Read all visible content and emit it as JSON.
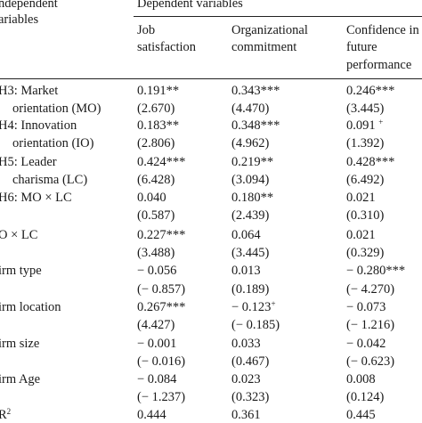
{
  "header": {
    "independent_line1": "ndependent",
    "independent_line2": "ariables",
    "dependent": "Dependent variables",
    "col1_line1": "Job",
    "col1_line2": "satisfaction",
    "col2_line1": "Organizational",
    "col2_line2": "commitment",
    "col3_line1": "Confidence in",
    "col3_line2": "future",
    "col3_line3": "performance"
  },
  "rows": [
    {
      "label": [
        "H3: Market",
        "orientation (MO)"
      ],
      "c1": [
        "0.191**",
        "(2.670)"
      ],
      "c2": [
        "0.343***",
        "(4.470)"
      ],
      "c3": [
        "0.246***",
        "(3.445)"
      ]
    },
    {
      "label": [
        "H4: Innovation",
        "orientation (IO)"
      ],
      "c1": [
        "0.183**",
        "(2.806)"
      ],
      "c2": [
        "0.348***",
        "(4.962)"
      ],
      "c3": [
        "0.091",
        "(1.392)"
      ],
      "c3_sup": "+"
    },
    {
      "label": [
        "H5: Leader",
        "charisma (LC)"
      ],
      "c1": [
        "0.424***",
        "(6.428)"
      ],
      "c2": [
        "0.219**",
        "(3.094)"
      ],
      "c3": [
        "0.428***",
        "(6.492)"
      ]
    },
    {
      "label": [
        "H6: MO × LC",
        ""
      ],
      "c1": [
        "0.040",
        "(0.587)"
      ],
      "c2": [
        "0.180**",
        "(2.439)"
      ],
      "c3": [
        "0.021",
        "(0.310)"
      ]
    },
    {
      "label": [
        "O × LC",
        ""
      ],
      "c1": [
        "0.227***",
        "(3.488)"
      ],
      "c2": [
        "0.064",
        "(3.445)"
      ],
      "c3": [
        "0.021",
        "(0.329)"
      ]
    },
    {
      "label": [
        "irm type",
        ""
      ],
      "c1": [
        "− 0.056",
        "(− 0.857)"
      ],
      "c2": [
        "0.013",
        "(0.189)"
      ],
      "c3": [
        "− 0.280***",
        "(− 4.270)"
      ]
    },
    {
      "label": [
        "irm location",
        ""
      ],
      "c1": [
        "0.267***",
        "(4.427)"
      ],
      "c2": [
        "− 0.123",
        "(− 0.185)"
      ],
      "c2_sup": "+",
      "c3": [
        "− 0.073",
        "(− 1.216)"
      ]
    },
    {
      "label": [
        "irm size",
        ""
      ],
      "c1": [
        "− 0.001",
        "(− 0.016)"
      ],
      "c2": [
        "0.033",
        "(0.467)"
      ],
      "c3": [
        "− 0.042",
        "(− 0.623)"
      ]
    },
    {
      "label": [
        "irm Age",
        ""
      ],
      "c1": [
        "− 0.084",
        "(− 1.237)"
      ],
      "c2": [
        "0.023",
        "(0.323)"
      ],
      "c3": [
        "0.008",
        "(0.124)"
      ]
    },
    {
      "label": [
        "R",
        ""
      ],
      "label_sup": "2",
      "c1": [
        "0.444",
        ""
      ],
      "c2": [
        "0.361",
        ""
      ],
      "c3": [
        "0.445",
        ""
      ]
    }
  ]
}
